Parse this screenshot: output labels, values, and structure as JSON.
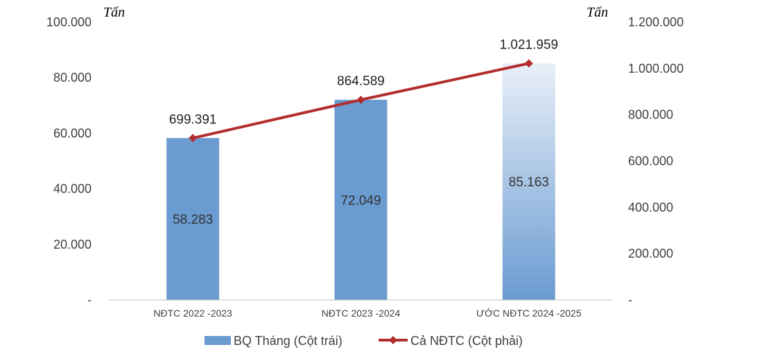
{
  "chart_data": {
    "type": "bar",
    "categories": [
      "NĐTC 2022 -2023",
      "NĐTC 2023 -2024",
      "ƯỚC NĐTC 2024 -2025"
    ],
    "series": [
      {
        "name": "BQ Tháng (Cột trái)",
        "type": "bar",
        "axis": "left",
        "values": [
          58283,
          72049,
          85163
        ],
        "value_labels": [
          "58.283",
          "72.049",
          "85.163"
        ],
        "color": "#6a9bd1"
      },
      {
        "name": "Cả NĐTC (Cột phải)",
        "type": "line",
        "axis": "right",
        "values": [
          699391,
          864589,
          1021959
        ],
        "value_labels": [
          "699.391",
          "864.589",
          "1.021.959"
        ],
        "color": "#b22e2e"
      }
    ],
    "left_axis": {
      "unit_label": "Tấn",
      "ylim": [
        0,
        100000
      ],
      "ticks": [
        0,
        20000,
        40000,
        60000,
        80000,
        100000
      ],
      "tick_labels": [
        "-",
        "20.000",
        "40.000",
        "60.000",
        "80.000",
        "100.000"
      ]
    },
    "right_axis": {
      "unit_label": "Tấn",
      "ylim": [
        0,
        1200000
      ],
      "ticks": [
        0,
        200000,
        400000,
        600000,
        800000,
        1000000,
        1200000
      ],
      "tick_labels": [
        "-",
        "200.000",
        "400.000",
        "600.000",
        "800.000",
        "1.000.000",
        "1.200.000"
      ]
    },
    "legend": {
      "placement": "bottom"
    },
    "grid": false
  }
}
